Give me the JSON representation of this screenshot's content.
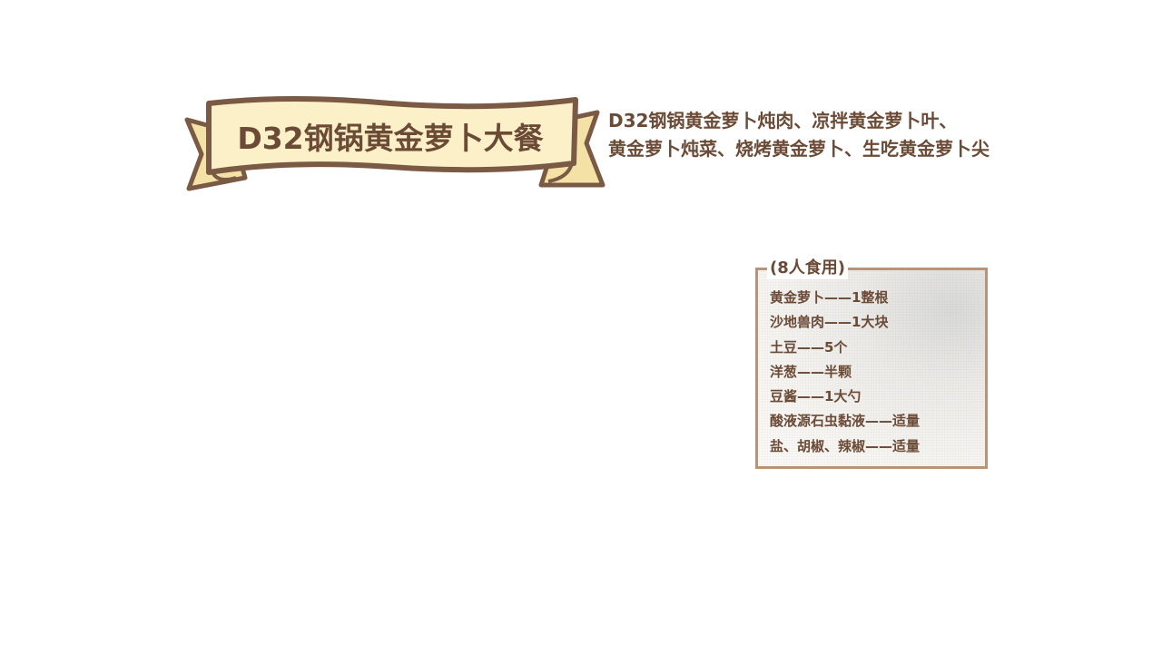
{
  "banner": {
    "title": "D32钢锅黄金萝卜大餐"
  },
  "dishes": {
    "line1": "D32钢锅黄金萝卜炖肉、凉拌黄金萝卜叶、",
    "line2": "黄金萝卜炖菜、烧烤黄金萝卜、生吃黄金萝卜尖"
  },
  "recipe": {
    "servings": "(8人食用)",
    "ingredients": [
      "黄金萝卜——1整根",
      "沙地兽肉——1大块",
      "土豆——5个",
      "洋葱——半颗",
      "豆酱——1大勺",
      "酸液源石虫黏液——适量",
      "盐、胡椒、辣椒——适量"
    ]
  },
  "colors": {
    "text": "#6b4a36",
    "banner_fill": "#fbefc4",
    "banner_outline": "#7a5a44",
    "card_border": "#b4957a"
  }
}
